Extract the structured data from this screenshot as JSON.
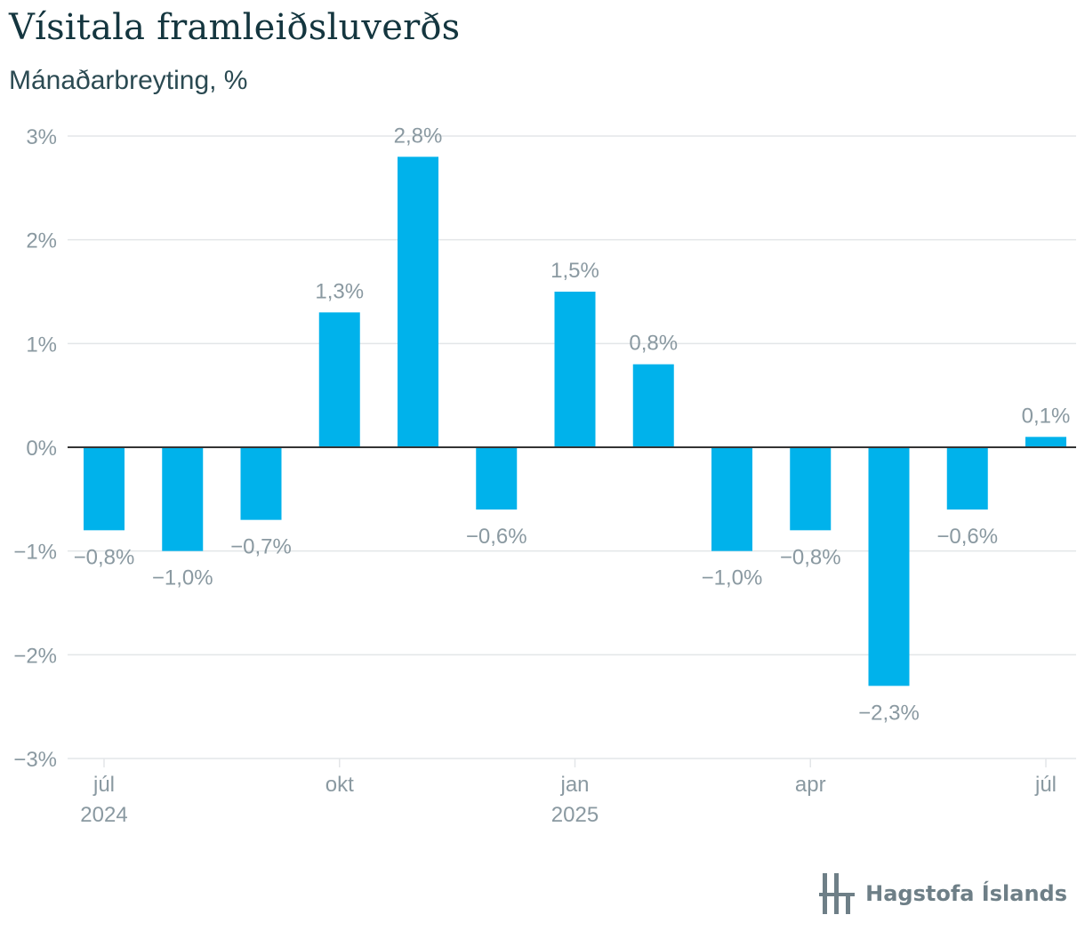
{
  "title": "Vísitala framleiðsluverðs",
  "subtitle": "Mánaðarbreyting, %",
  "brand": "Hagstofa Íslands",
  "colors": {
    "bar": "#00b2eb",
    "grid": "#e3e6e8",
    "zero": "#333333",
    "label": "#8a99a1"
  },
  "chart_data": {
    "type": "bar",
    "title": "Vísitala framleiðsluverðs",
    "subtitle": "Mánaðarbreyting, %",
    "categories": [
      "2024-07",
      "2024-08",
      "2024-09",
      "2024-10",
      "2024-11",
      "2024-12",
      "2025-01",
      "2025-02",
      "2025-03",
      "2025-04",
      "2025-05",
      "2025-06",
      "2025-07"
    ],
    "values": [
      -0.8,
      -1.0,
      -0.7,
      1.3,
      2.8,
      -0.6,
      1.5,
      0.8,
      -1.0,
      -0.8,
      -2.3,
      -0.6,
      0.1
    ],
    "data_labels": [
      "−0,8%",
      "−1,0%",
      "−0,7%",
      "1,3%",
      "2,8%",
      "−0,6%",
      "1,5%",
      "0,8%",
      "−1,0%",
      "−0,8%",
      "−2,3%",
      "−0,6%",
      "0,1%"
    ],
    "ylim": [
      -3,
      3
    ],
    "yticks": [
      3,
      2,
      1,
      0,
      -1,
      -2,
      -3
    ],
    "ytick_labels": [
      "3%",
      "2%",
      "1%",
      "0%",
      "−1%",
      "−2%",
      "−3%"
    ],
    "xticks": [
      {
        "index": 0,
        "label": "júl",
        "year": "2024"
      },
      {
        "index": 3,
        "label": "okt",
        "year": ""
      },
      {
        "index": 6,
        "label": "jan",
        "year": "2025"
      },
      {
        "index": 9,
        "label": "apr",
        "year": ""
      },
      {
        "index": 12,
        "label": "júl",
        "year": ""
      }
    ],
    "grid": true,
    "legend": "none"
  }
}
